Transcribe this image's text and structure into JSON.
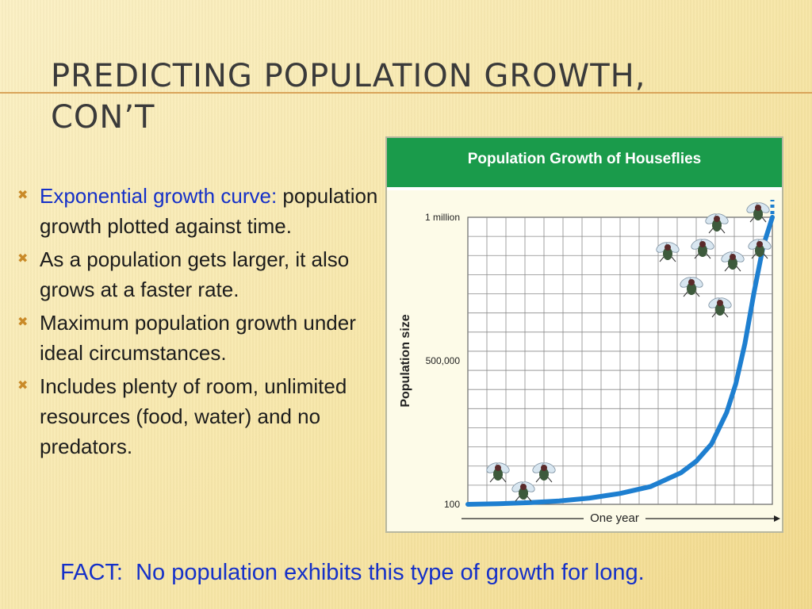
{
  "slide": {
    "title": "Predicting Population Growth, Con’t",
    "bullets": [
      {
        "emphasis": "Exponential growth curve:",
        "text": " population growth plotted against time."
      },
      {
        "emphasis": "",
        "text": "As a population gets larger, it also grows at a faster rate."
      },
      {
        "emphasis": "",
        "text": "Maximum population growth under ideal circumstances."
      },
      {
        "emphasis": "",
        "text": "Includes plenty of room, unlimited resources (food, water) and no predators."
      }
    ],
    "fact": "FACT:  No population exhibits this type of growth for long.",
    "colors": {
      "accent_bullet": "#c98a28",
      "emphasis_text": "#1530c8",
      "chart_header": "#1a9b4b",
      "curve": "#1e7fd0"
    }
  },
  "chart_data": {
    "type": "line",
    "title": "Population Growth of Houseflies",
    "xlabel": "One year",
    "ylabel": "Population size",
    "y_tick_labels": [
      "100",
      "500,000",
      "1 million"
    ],
    "y_ticks": [
      100,
      500000,
      1000000
    ],
    "ylim": [
      100,
      1000000
    ],
    "xlim": [
      0,
      1
    ],
    "grid": true,
    "series": [
      {
        "name": "",
        "x": [
          0,
          0.1,
          0.2,
          0.3,
          0.4,
          0.5,
          0.6,
          0.7,
          0.75,
          0.8,
          0.85,
          0.88,
          0.91,
          0.94,
          0.97,
          1.0
        ],
        "y": [
          100,
          2000,
          6000,
          12000,
          22000,
          38000,
          62000,
          110000,
          150000,
          210000,
          320000,
          420000,
          560000,
          740000,
          900000,
          1000000
        ]
      }
    ],
    "illustrations": [
      "housefly-icon"
    ]
  }
}
